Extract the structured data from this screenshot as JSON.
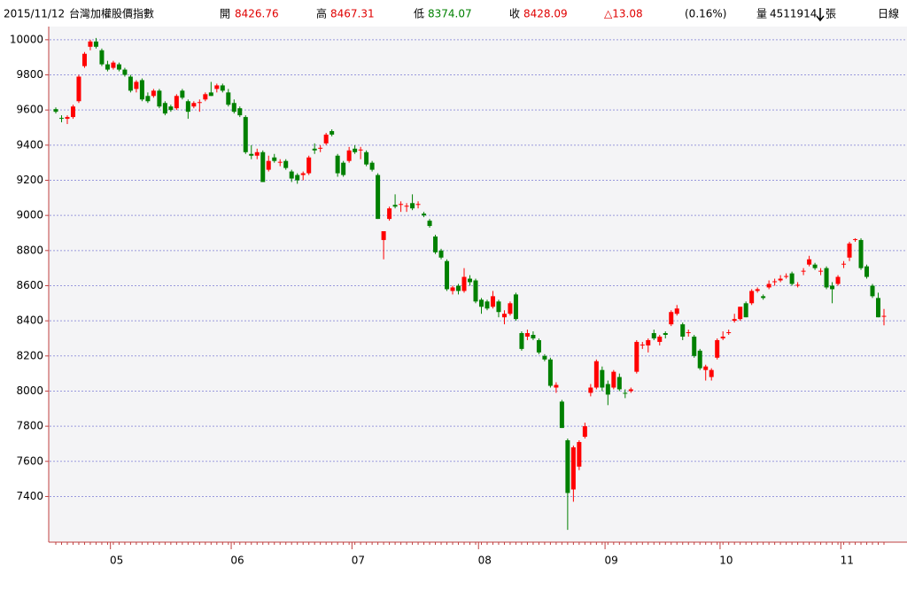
{
  "header": {
    "date": "2015/11/12",
    "name": "台灣加權股價指數",
    "open_label": "開",
    "open": "8426.76",
    "high_label": "高",
    "high": "8467.31",
    "low_label": "低",
    "low": "8374.07",
    "close_label": "收",
    "close": "8428.09",
    "change": "△13.08",
    "change_pct": "(0.16%)",
    "volume_label": "量",
    "volume": "4511914",
    "volume_unit": "張",
    "period": "日線"
  },
  "chart_data": {
    "type": "candlestick",
    "up_color": "#ff0000",
    "down_color": "#008000",
    "grid": true,
    "ylim": [
      7140,
      10085
    ],
    "yticks": [
      7400,
      7600,
      7800,
      8000,
      8200,
      8400,
      8600,
      8800,
      9000,
      9200,
      9400,
      9600,
      9800,
      10000
    ],
    "categories": [
      null,
      null,
      null,
      null,
      null,
      null,
      null,
      null,
      null,
      null,
      "05",
      null,
      null,
      null,
      null,
      null,
      null,
      null,
      null,
      null,
      null,
      null,
      null,
      null,
      null,
      null,
      null,
      null,
      null,
      null,
      null,
      "06",
      null,
      null,
      null,
      null,
      null,
      null,
      null,
      null,
      null,
      null,
      null,
      null,
      null,
      null,
      null,
      null,
      null,
      null,
      null,
      null,
      "07",
      null,
      null,
      null,
      null,
      null,
      null,
      null,
      null,
      null,
      null,
      null,
      null,
      null,
      null,
      null,
      null,
      null,
      null,
      null,
      null,
      null,
      "08",
      null,
      null,
      null,
      null,
      null,
      null,
      null,
      null,
      null,
      null,
      null,
      null,
      null,
      null,
      null,
      null,
      null,
      null,
      null,
      null,
      null,
      "09",
      null,
      null,
      null,
      null,
      null,
      null,
      null,
      null,
      null,
      null,
      null,
      null,
      null,
      null,
      null,
      null,
      null,
      null,
      null,
      "10",
      null,
      null,
      null,
      null,
      null,
      null,
      null,
      null,
      null,
      null,
      null,
      null,
      null,
      null,
      null,
      null,
      null,
      null,
      null,
      null,
      "11",
      null,
      null,
      null,
      null,
      null,
      null,
      null
    ],
    "ohlc": [
      [
        9605,
        9615,
        9580,
        9590
      ],
      [
        9555,
        9570,
        9530,
        9550
      ],
      [
        9550,
        9570,
        9520,
        9560
      ],
      [
        9560,
        9630,
        9550,
        9620
      ],
      [
        9650,
        9800,
        9640,
        9790
      ],
      [
        9850,
        9930,
        9840,
        9920
      ],
      [
        9960,
        10000,
        9940,
        9990
      ],
      [
        9990,
        10010,
        9950,
        9960
      ],
      [
        9940,
        9950,
        9850,
        9860
      ],
      [
        9860,
        9880,
        9820,
        9830
      ],
      [
        9840,
        9880,
        9830,
        9870
      ],
      [
        9860,
        9870,
        9820,
        9830
      ],
      [
        9830,
        9840,
        9790,
        9800
      ],
      [
        9790,
        9800,
        9700,
        9710
      ],
      [
        9720,
        9770,
        9700,
        9760
      ],
      [
        9770,
        9780,
        9650,
        9660
      ],
      [
        9680,
        9700,
        9640,
        9650
      ],
      [
        9680,
        9720,
        9670,
        9710
      ],
      [
        9710,
        9720,
        9610,
        9620
      ],
      [
        9640,
        9650,
        9570,
        9580
      ],
      [
        9620,
        9630,
        9590,
        9600
      ],
      [
        9610,
        9690,
        9600,
        9680
      ],
      [
        9710,
        9720,
        9660,
        9670
      ],
      [
        9650,
        9660,
        9550,
        9590
      ],
      [
        9620,
        9650,
        9610,
        9640
      ],
      [
        9640,
        9660,
        9590,
        9645
      ],
      [
        9660,
        9700,
        9650,
        9690
      ],
      [
        9700,
        9760,
        9680,
        9680
      ],
      [
        9720,
        9750,
        9700,
        9740
      ],
      [
        9740,
        9750,
        9700,
        9710
      ],
      [
        9700,
        9720,
        9620,
        9630
      ],
      [
        9640,
        9660,
        9580,
        9590
      ],
      [
        9610,
        9620,
        9560,
        9570
      ],
      [
        9560,
        9570,
        9350,
        9360
      ],
      [
        9350,
        9400,
        9320,
        9340
      ],
      [
        9340,
        9380,
        9320,
        9360
      ],
      [
        9360,
        9370,
        9190,
        9190
      ],
      [
        9260,
        9340,
        9250,
        9310
      ],
      [
        9330,
        9350,
        9300,
        9310
      ],
      [
        9300,
        9320,
        9280,
        9305
      ],
      [
        9310,
        9320,
        9260,
        9270
      ],
      [
        9250,
        9260,
        9190,
        9210
      ],
      [
        9230,
        9240,
        9180,
        9200
      ],
      [
        9230,
        9250,
        9200,
        9240
      ],
      [
        9240,
        9340,
        9230,
        9330
      ],
      [
        9380,
        9410,
        9350,
        9370
      ],
      [
        9380,
        9400,
        9360,
        9385
      ],
      [
        9410,
        9470,
        9400,
        9460
      ],
      [
        9480,
        9490,
        9450,
        9460
      ],
      [
        9340,
        9350,
        9220,
        9240
      ],
      [
        9300,
        9310,
        9220,
        9230
      ],
      [
        9310,
        9390,
        9300,
        9370
      ],
      [
        9380,
        9400,
        9350,
        9360
      ],
      [
        9370,
        9390,
        9320,
        9375
      ],
      [
        9360,
        9370,
        9280,
        9290
      ],
      [
        9300,
        9310,
        9250,
        9260
      ],
      [
        9230,
        9240,
        8980,
        8980
      ],
      [
        8860,
        8910,
        8750,
        8910
      ],
      [
        8980,
        9050,
        8970,
        9040
      ],
      [
        9060,
        9120,
        9040,
        9050
      ],
      [
        9060,
        9080,
        9020,
        9065
      ],
      [
        9050,
        9070,
        9020,
        9055
      ],
      [
        9070,
        9120,
        9030,
        9040
      ],
      [
        9060,
        9080,
        9040,
        9065
      ],
      [
        9010,
        9020,
        8990,
        9000
      ],
      [
        8970,
        8980,
        8930,
        8940
      ],
      [
        8880,
        8890,
        8780,
        8790
      ],
      [
        8800,
        8810,
        8750,
        8760
      ],
      [
        8740,
        8750,
        8570,
        8580
      ],
      [
        8570,
        8600,
        8550,
        8590
      ],
      [
        8600,
        8610,
        8550,
        8570
      ],
      [
        8570,
        8700,
        8560,
        8650
      ],
      [
        8640,
        8660,
        8600,
        8620
      ],
      [
        8630,
        8640,
        8500,
        8510
      ],
      [
        8520,
        8530,
        8440,
        8480
      ],
      [
        8510,
        8520,
        8460,
        8470
      ],
      [
        8480,
        8570,
        8470,
        8540
      ],
      [
        8510,
        8520,
        8420,
        8450
      ],
      [
        8420,
        8460,
        8380,
        8440
      ],
      [
        8440,
        8510,
        8430,
        8500
      ],
      [
        8550,
        8560,
        8400,
        8410
      ],
      [
        8330,
        8340,
        8230,
        8240
      ],
      [
        8310,
        8350,
        8290,
        8330
      ],
      [
        8320,
        8340,
        8290,
        8300
      ],
      [
        8290,
        8300,
        8210,
        8220
      ],
      [
        8200,
        8210,
        8170,
        8180
      ],
      [
        8180,
        8190,
        8020,
        8030
      ],
      [
        8020,
        8050,
        7990,
        8035
      ],
      [
        7940,
        7950,
        7790,
        7790
      ],
      [
        7720,
        7730,
        7210,
        7420
      ],
      [
        7440,
        7690,
        7370,
        7680
      ],
      [
        7570,
        7720,
        7550,
        7710
      ],
      [
        7740,
        7820,
        7730,
        7800
      ],
      [
        7990,
        8040,
        7970,
        8020
      ],
      [
        8020,
        8180,
        8010,
        8170
      ],
      [
        8120,
        8140,
        8000,
        8020
      ],
      [
        8040,
        8060,
        7920,
        7980
      ],
      [
        8020,
        8120,
        8010,
        8110
      ],
      [
        8080,
        8100,
        8000,
        8010
      ],
      [
        7990,
        8010,
        7960,
        7985
      ],
      [
        8000,
        8020,
        7990,
        8010
      ],
      [
        8110,
        8290,
        8100,
        8280
      ],
      [
        8260,
        8280,
        8240,
        8265
      ],
      [
        8260,
        8300,
        8220,
        8290
      ],
      [
        8330,
        8350,
        8290,
        8300
      ],
      [
        8280,
        8320,
        8260,
        8310
      ],
      [
        8330,
        8340,
        8300,
        8320
      ],
      [
        8380,
        8460,
        8370,
        8450
      ],
      [
        8440,
        8490,
        8430,
        8470
      ],
      [
        8380,
        8390,
        8290,
        8310
      ],
      [
        8330,
        8350,
        8310,
        8335
      ],
      [
        8310,
        8320,
        8190,
        8200
      ],
      [
        8230,
        8240,
        8120,
        8130
      ],
      [
        8120,
        8150,
        8060,
        8140
      ],
      [
        8080,
        8130,
        8060,
        8120
      ],
      [
        8190,
        8300,
        8180,
        8290
      ],
      [
        8300,
        8340,
        8290,
        8310
      ],
      [
        8330,
        8350,
        8320,
        8335
      ],
      [
        8400,
        8440,
        8390,
        8410
      ],
      [
        8410,
        8480,
        8400,
        8480
      ],
      [
        8500,
        8510,
        8420,
        8420
      ],
      [
        8500,
        8580,
        8490,
        8570
      ],
      [
        8570,
        8590,
        8560,
        8580
      ],
      [
        8540,
        8550,
        8520,
        8530
      ],
      [
        8590,
        8630,
        8580,
        8610
      ],
      [
        8620,
        8640,
        8600,
        8625
      ],
      [
        8630,
        8660,
        8620,
        8640
      ],
      [
        8650,
        8670,
        8640,
        8655
      ],
      [
        8670,
        8680,
        8600,
        8610
      ],
      [
        8600,
        8620,
        8590,
        8605
      ],
      [
        8680,
        8700,
        8660,
        8685
      ],
      [
        8720,
        8770,
        8710,
        8750
      ],
      [
        8720,
        8730,
        8690,
        8700
      ],
      [
        8680,
        8700,
        8660,
        8685
      ],
      [
        8700,
        8710,
        8580,
        8590
      ],
      [
        8600,
        8620,
        8500,
        8580
      ],
      [
        8610,
        8660,
        8600,
        8650
      ],
      [
        8720,
        8740,
        8700,
        8725
      ],
      [
        8760,
        8850,
        8740,
        8840
      ],
      [
        8860,
        8870,
        8850,
        8865
      ],
      [
        8860,
        8870,
        8690,
        8700
      ],
      [
        8710,
        8720,
        8640,
        8650
      ],
      [
        8600,
        8610,
        8530,
        8540
      ],
      [
        8530,
        8560,
        8420,
        8420
      ],
      [
        8426.76,
        8467.31,
        8374.07,
        8428.09
      ]
    ]
  }
}
